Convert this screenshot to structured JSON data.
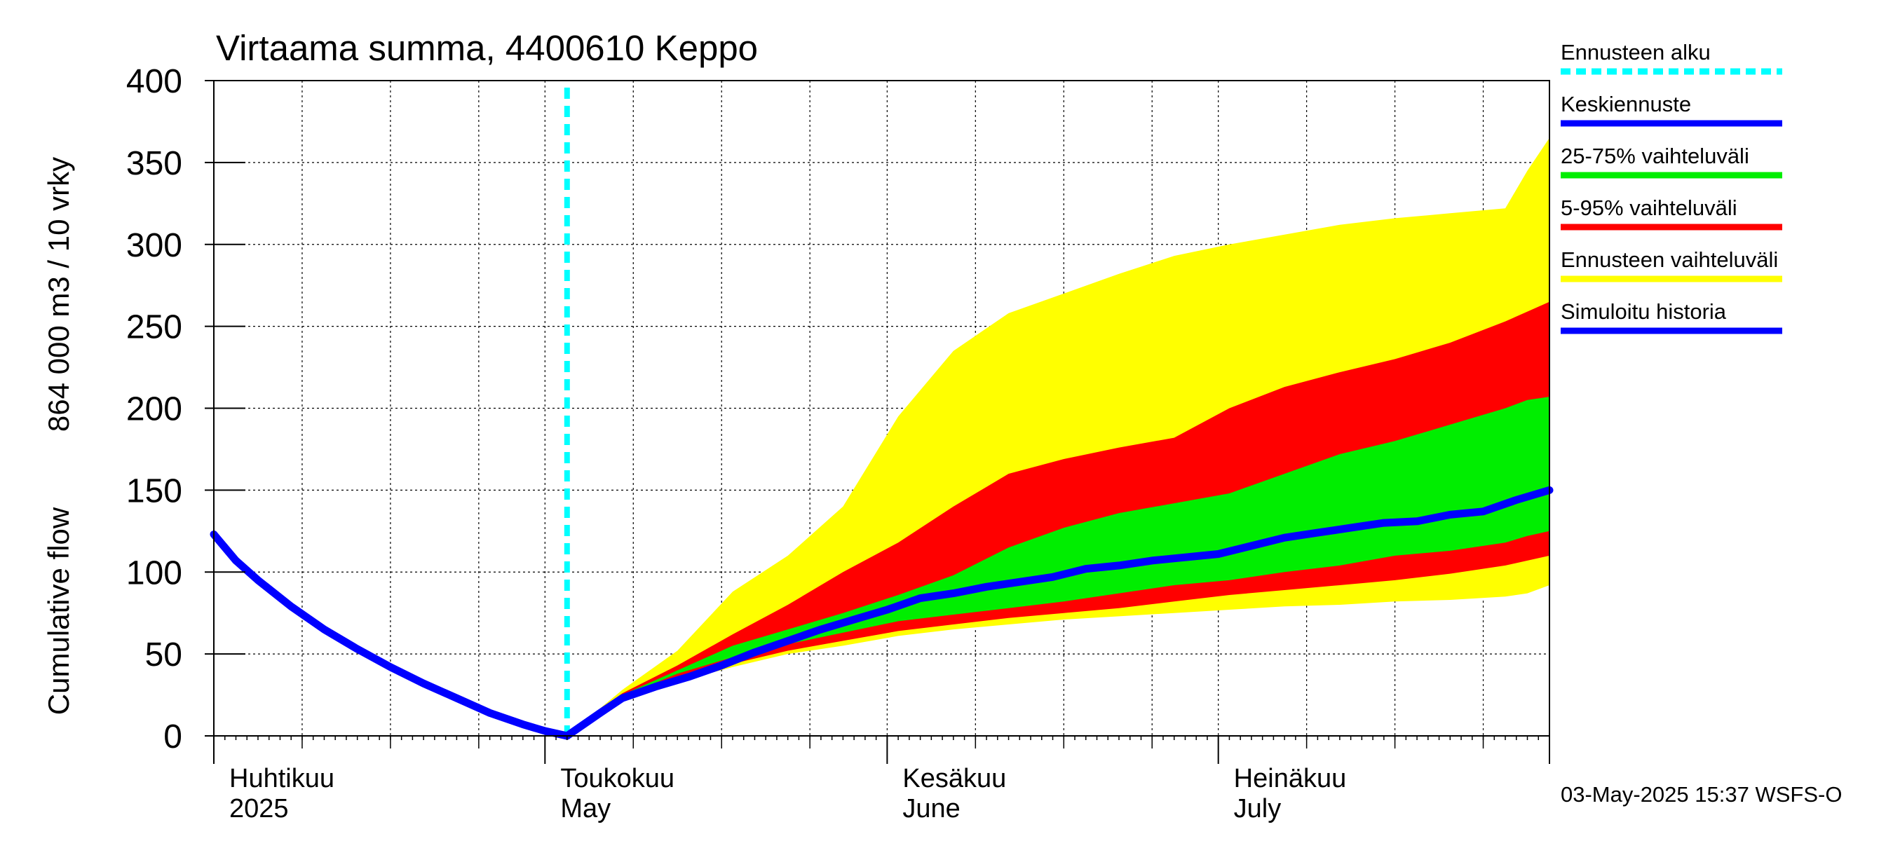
{
  "chart_data": {
    "type": "area",
    "title": "Virtaama summa, 4400610 Keppo",
    "ylabel_lines": [
      "Cumulative flow",
      "864 000 m3 / 10 vrky"
    ],
    "xlabel": "",
    "ylim": [
      0,
      400
    ],
    "yticks": [
      0,
      50,
      100,
      150,
      200,
      250,
      300,
      350,
      400
    ],
    "xlim": [
      "2025-04-01",
      "2025-07-31"
    ],
    "grid": true,
    "legend_position": "right",
    "x_month_labels": [
      {
        "date": "2025-04-01",
        "fi": "Huhtikuu",
        "en": "2025"
      },
      {
        "date": "2025-05-01",
        "fi": "Toukokuu",
        "en": "May"
      },
      {
        "date": "2025-06-01",
        "fi": "Kesäkuu",
        "en": "June"
      },
      {
        "date": "2025-07-01",
        "fi": "Heinäkuu",
        "en": "July"
      }
    ],
    "forecast_start": "2025-05-03",
    "colors": {
      "forecast_start": "#00ffff",
      "mean": "#0000ff",
      "band_25_75": "#00ee00",
      "band_5_95": "#ff0000",
      "band_full": "#ffff00",
      "history": "#0000ff"
    },
    "legend": [
      {
        "label": "Ennusteen alku",
        "key": "forecast_start",
        "style": "dashed"
      },
      {
        "label": "Keskiennuste",
        "key": "mean",
        "style": "solid"
      },
      {
        "label": "25-75% vaihteluväli",
        "key": "band_25_75",
        "style": "solid"
      },
      {
        "label": "5-95% vaihteluväli",
        "key": "band_5_95",
        "style": "solid"
      },
      {
        "label": "Ennusteen vaihteluväli",
        "key": "band_full",
        "style": "solid"
      },
      {
        "label": "Simuloitu historia",
        "key": "history",
        "style": "solid"
      }
    ],
    "history": {
      "x": [
        "2025-04-01",
        "2025-04-03",
        "2025-04-05",
        "2025-04-08",
        "2025-04-11",
        "2025-04-14",
        "2025-04-17",
        "2025-04-20",
        "2025-04-23",
        "2025-04-26",
        "2025-04-29",
        "2025-05-01",
        "2025-05-03"
      ],
      "y": [
        123,
        107,
        95,
        79,
        65,
        53,
        42,
        32,
        23,
        14,
        7,
        3,
        0
      ]
    },
    "mean": {
      "x": [
        "2025-05-03",
        "2025-05-06",
        "2025-05-08",
        "2025-05-11",
        "2025-05-14",
        "2025-05-17",
        "2025-05-20",
        "2025-05-23",
        "2025-05-26",
        "2025-05-29",
        "2025-06-01",
        "2025-06-04",
        "2025-06-07",
        "2025-06-10",
        "2025-06-13",
        "2025-06-16",
        "2025-06-19",
        "2025-06-22",
        "2025-06-25",
        "2025-06-28",
        "2025-07-01",
        "2025-07-04",
        "2025-07-07",
        "2025-07-10",
        "2025-07-13",
        "2025-07-16",
        "2025-07-19",
        "2025-07-22",
        "2025-07-25",
        "2025-07-28",
        "2025-07-31"
      ],
      "y": [
        0,
        14,
        23,
        30,
        36,
        43,
        51,
        58,
        65,
        71,
        77,
        84,
        87,
        91,
        94,
        97,
        102,
        104,
        107,
        109,
        111,
        116,
        121,
        124,
        127,
        130,
        131,
        135,
        137,
        144,
        150
      ]
    },
    "bands": {
      "x": [
        "2025-05-03",
        "2025-05-08",
        "2025-05-13",
        "2025-05-18",
        "2025-05-23",
        "2025-05-28",
        "2025-06-02",
        "2025-06-07",
        "2025-06-12",
        "2025-06-17",
        "2025-06-22",
        "2025-06-27",
        "2025-07-02",
        "2025-07-07",
        "2025-07-12",
        "2025-07-17",
        "2025-07-22",
        "2025-07-27",
        "2025-07-29",
        "2025-07-31"
      ],
      "full_low": [
        0,
        22,
        33,
        42,
        50,
        55,
        61,
        65,
        68,
        71,
        73,
        75,
        77,
        79,
        80,
        82,
        83,
        85,
        87,
        92
      ],
      "p5": [
        0,
        23,
        35,
        44,
        52,
        58,
        64,
        68,
        72,
        75,
        78,
        82,
        86,
        89,
        92,
        95,
        99,
        104,
        107,
        110
      ],
      "p25": [
        0,
        24,
        38,
        48,
        56,
        63,
        70,
        74,
        78,
        82,
        87,
        92,
        95,
        100,
        104,
        110,
        113,
        118,
        122,
        125
      ],
      "p75": [
        0,
        25,
        40,
        55,
        65,
        75,
        86,
        98,
        115,
        127,
        136,
        142,
        148,
        160,
        172,
        180,
        190,
        200,
        205,
        207
      ],
      "p95": [
        0,
        26,
        43,
        62,
        80,
        100,
        118,
        140,
        160,
        169,
        176,
        182,
        200,
        213,
        222,
        230,
        240,
        253,
        259,
        265
      ],
      "full_high": [
        0,
        28,
        52,
        88,
        110,
        140,
        195,
        235,
        258,
        270,
        282,
        293,
        300,
        306,
        312,
        316,
        319,
        322,
        345,
        365
      ]
    }
  },
  "footer": {
    "timestamp": "03-May-2025 15:37 WSFS-O"
  }
}
